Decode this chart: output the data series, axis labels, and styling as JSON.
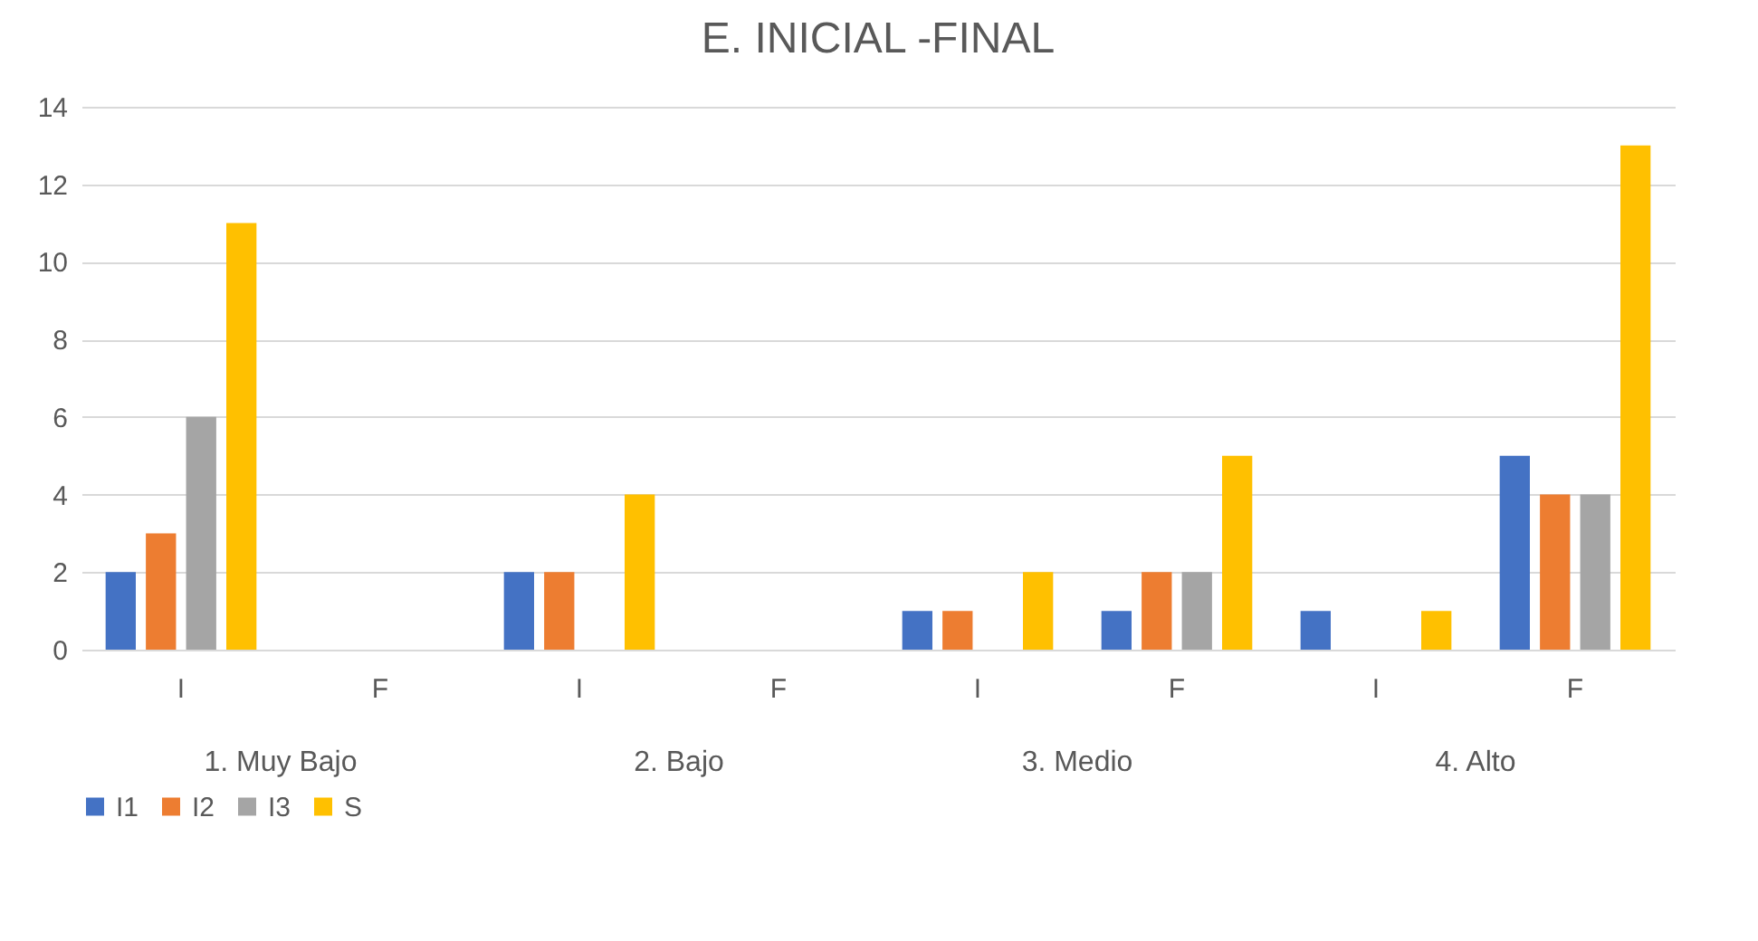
{
  "chart_data": {
    "type": "bar",
    "title": "E. INICIAL -FINAL",
    "categories": [
      "I",
      "F",
      "I",
      "F",
      "I",
      "F",
      "I",
      "F"
    ],
    "annotations": [
      "1. Muy Bajo",
      "2. Bajo",
      "3. Medio",
      "4. Alto"
    ],
    "series": [
      {
        "name": "I1",
        "color": "#4472c4",
        "values": [
          2,
          0,
          2,
          0,
          1,
          1,
          1,
          5
        ]
      },
      {
        "name": "I2",
        "color": "#ed7d31",
        "values": [
          3,
          0,
          2,
          0,
          1,
          2,
          0,
          4
        ]
      },
      {
        "name": "I3",
        "color": "#a5a5a5",
        "values": [
          6,
          0,
          0,
          0,
          0,
          2,
          0,
          4
        ]
      },
      {
        "name": "S",
        "color": "#ffc000",
        "values": [
          11,
          0,
          4,
          0,
          2,
          5,
          1,
          13
        ]
      }
    ],
    "ylim": [
      0,
      14
    ],
    "yticks": [
      0,
      2,
      4,
      6,
      8,
      10,
      12,
      14
    ],
    "grid": "y",
    "legend": "bottom"
  }
}
